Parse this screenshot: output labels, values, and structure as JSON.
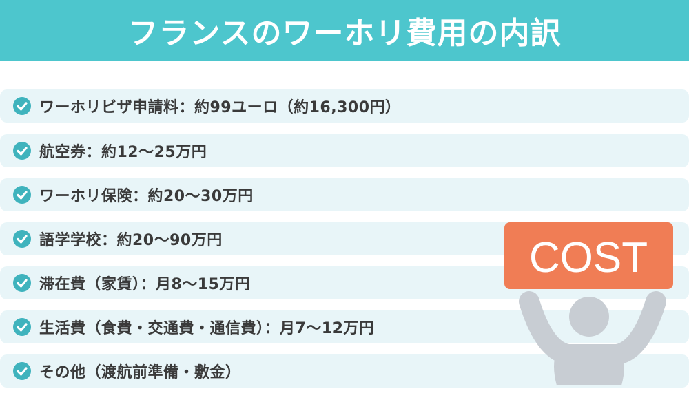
{
  "title": "フランスのワーホリ費用の内訳",
  "items": [
    {
      "label": "ワーホリビザ申請料：約99ユーロ（約16,300円）"
    },
    {
      "label": "航空券：約12〜25万円"
    },
    {
      "label": "ワーホリ保険：約20〜30万円"
    },
    {
      "label": "語学学校：約20〜90万円"
    },
    {
      "label": "滞在費（家賃）：月8〜15万円"
    },
    {
      "label": "生活費（食費・交通費・通信費）：月7〜12万円"
    },
    {
      "label": "その他（渡航前準備・敷金）"
    }
  ],
  "illustration": {
    "sign_text": "COST",
    "icon": "person-holding-sign"
  },
  "colors": {
    "header": "#4dc6cd",
    "row_bg": "#e8f5f8",
    "check": "#3fb3bd",
    "sign": "#f07d55",
    "person": "#c8cdd3"
  }
}
